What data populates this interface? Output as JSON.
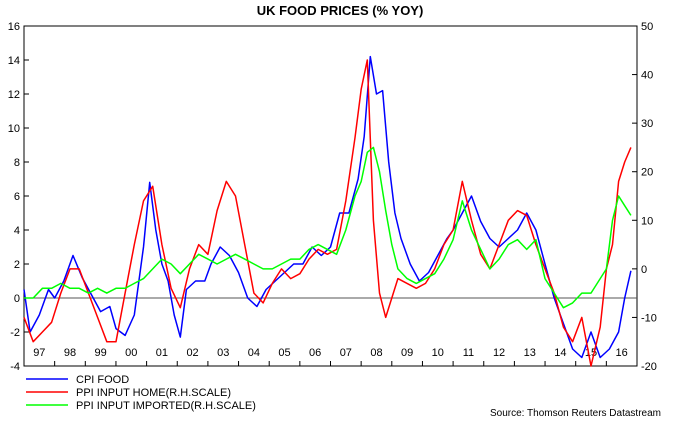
{
  "chart_data": {
    "type": "line",
    "title": "UK FOOD PRICES (% YOY)",
    "source": "Source: Thomson Reuters Datastream",
    "x_labels": [
      "97",
      "98",
      "99",
      "00",
      "01",
      "02",
      "03",
      "04",
      "05",
      "06",
      "07",
      "08",
      "09",
      "10",
      "11",
      "12",
      "13",
      "14",
      "15",
      "16"
    ],
    "x_range": [
      1997.0,
      2017.0
    ],
    "y_left": {
      "range": [
        -4,
        16
      ],
      "ticks": [
        "-4",
        "-2",
        "0",
        "2",
        "4",
        "6",
        "8",
        "10",
        "12",
        "14",
        "16"
      ]
    },
    "y_right": {
      "range": [
        -20,
        50
      ],
      "ticks": [
        "-20",
        "-10",
        "0",
        "10",
        "20",
        "30",
        "40",
        "50"
      ]
    },
    "zero_line": true,
    "grid": false,
    "legend_position": "bottom-left",
    "series": [
      {
        "name": "CPI FOOD",
        "color": "#0000ff",
        "axis": "left",
        "x": [
          1997.0,
          1997.2,
          1997.5,
          1997.8,
          1998.0,
          1998.3,
          1998.6,
          1998.9,
          1999.2,
          1999.5,
          1999.8,
          2000.0,
          2000.3,
          2000.6,
          2000.9,
          2001.1,
          2001.3,
          2001.5,
          2001.7,
          2001.9,
          2002.1,
          2002.3,
          2002.6,
          2002.9,
          2003.1,
          2003.4,
          2003.7,
          2004.0,
          2004.3,
          2004.6,
          2004.9,
          2005.2,
          2005.5,
          2005.8,
          2006.1,
          2006.4,
          2006.7,
          2007.0,
          2007.3,
          2007.6,
          2007.9,
          2008.1,
          2008.3,
          2008.5,
          2008.7,
          2008.9,
          2009.1,
          2009.3,
          2009.6,
          2009.9,
          2010.2,
          2010.5,
          2010.8,
          2011.0,
          2011.3,
          2011.6,
          2011.9,
          2012.2,
          2012.5,
          2012.8,
          2013.1,
          2013.4,
          2013.7,
          2014.0,
          2014.3,
          2014.6,
          2014.9,
          2015.2,
          2015.5,
          2015.8,
          2016.1,
          2016.4,
          2016.6,
          2016.8
        ],
        "y": [
          0.5,
          -2.0,
          -1.0,
          0.5,
          0.0,
          1.0,
          2.5,
          1.2,
          0.2,
          -0.8,
          -0.5,
          -1.8,
          -2.2,
          -1.0,
          3.0,
          6.8,
          4.0,
          2.0,
          1.0,
          -1.0,
          -2.3,
          0.5,
          1.0,
          1.0,
          2.0,
          3.0,
          2.5,
          1.5,
          0.0,
          -0.5,
          0.5,
          1.0,
          1.5,
          2.0,
          2.0,
          3.0,
          2.5,
          3.0,
          5.0,
          5.0,
          7.0,
          9.5,
          14.2,
          12.0,
          12.2,
          8.0,
          5.0,
          3.5,
          2.0,
          1.0,
          1.5,
          2.5,
          3.5,
          4.0,
          5.0,
          6.0,
          4.5,
          3.5,
          3.0,
          3.5,
          4.0,
          5.0,
          4.0,
          2.0,
          0.0,
          -1.5,
          -3.0,
          -3.5,
          -2.0,
          -3.5,
          -3.0,
          -2.0,
          0.0,
          1.6
        ]
      },
      {
        "name": "PPI INPUT HOME(R.H.SCALE)",
        "color": "#ff0000",
        "axis": "right",
        "x": [
          1997.0,
          1997.3,
          1997.6,
          1997.9,
          1998.2,
          1998.5,
          1998.8,
          1999.1,
          1999.4,
          1999.7,
          2000.0,
          2000.3,
          2000.6,
          2000.9,
          2001.2,
          2001.5,
          2001.8,
          2002.1,
          2002.4,
          2002.7,
          2003.0,
          2003.3,
          2003.6,
          2003.9,
          2004.2,
          2004.5,
          2004.8,
          2005.1,
          2005.4,
          2005.7,
          2006.0,
          2006.3,
          2006.6,
          2006.9,
          2007.2,
          2007.5,
          2007.8,
          2008.0,
          2008.2,
          2008.4,
          2008.6,
          2008.8,
          2009.0,
          2009.2,
          2009.5,
          2009.8,
          2010.1,
          2010.4,
          2010.7,
          2011.0,
          2011.3,
          2011.6,
          2011.9,
          2012.2,
          2012.5,
          2012.8,
          2013.1,
          2013.4,
          2013.7,
          2014.0,
          2014.3,
          2014.6,
          2014.9,
          2015.2,
          2015.5,
          2015.8,
          2016.0,
          2016.2,
          2016.4,
          2016.6,
          2016.8
        ],
        "y": [
          -10,
          -15,
          -13,
          -11,
          -5,
          0,
          0,
          -5,
          -10,
          -15,
          -15,
          -5,
          5,
          14,
          17,
          5,
          -4,
          -8,
          0,
          5,
          3,
          12,
          18,
          15,
          5,
          -5,
          -7,
          -3,
          0,
          -2,
          -1,
          2,
          4,
          3,
          4,
          14,
          27,
          37,
          43,
          10,
          -5,
          -10,
          -6,
          -2,
          -3,
          -4,
          -3,
          0,
          5,
          8,
          18,
          10,
          3,
          0,
          5,
          10,
          12,
          11,
          5,
          0,
          -5,
          -12,
          -15,
          -10,
          -20,
          -12,
          0,
          5,
          18,
          22,
          25
        ]
      },
      {
        "name": "PPI INPUT IMPORTED(R.H.SCALE)",
        "color": "#00ff00",
        "axis": "right",
        "x": [
          1997.0,
          1997.3,
          1997.6,
          1997.9,
          1998.2,
          1998.5,
          1998.8,
          1999.1,
          1999.4,
          1999.7,
          2000.0,
          2000.3,
          2000.6,
          2000.9,
          2001.2,
          2001.5,
          2001.8,
          2002.1,
          2002.4,
          2002.7,
          2003.0,
          2003.3,
          2003.6,
          2003.9,
          2004.2,
          2004.5,
          2004.8,
          2005.1,
          2005.4,
          2005.7,
          2006.0,
          2006.3,
          2006.6,
          2006.9,
          2007.2,
          2007.5,
          2007.8,
          2008.0,
          2008.2,
          2008.4,
          2008.6,
          2008.8,
          2009.0,
          2009.2,
          2009.5,
          2009.8,
          2010.1,
          2010.4,
          2010.7,
          2011.0,
          2011.3,
          2011.6,
          2011.9,
          2012.2,
          2012.5,
          2012.8,
          2013.1,
          2013.4,
          2013.7,
          2014.0,
          2014.3,
          2014.6,
          2014.9,
          2015.2,
          2015.5,
          2015.8,
          2016.0,
          2016.2,
          2016.4,
          2016.6,
          2016.8
        ],
        "y": [
          -6,
          -6,
          -4,
          -4,
          -3,
          -4,
          -4,
          -5,
          -4,
          -5,
          -4,
          -4,
          -3,
          -2,
          0,
          2,
          1,
          -1,
          1,
          3,
          2,
          1,
          2,
          3,
          2,
          1,
          0,
          0,
          1,
          2,
          2,
          4,
          5,
          4,
          3,
          8,
          15,
          18,
          24,
          25,
          20,
          12,
          5,
          0,
          -2,
          -3,
          -2,
          -1,
          2,
          6,
          14,
          8,
          4,
          0,
          2,
          5,
          6,
          4,
          6,
          -2,
          -5,
          -8,
          -7,
          -5,
          -5,
          -2,
          0,
          10,
          15,
          13,
          11
        ]
      }
    ]
  }
}
